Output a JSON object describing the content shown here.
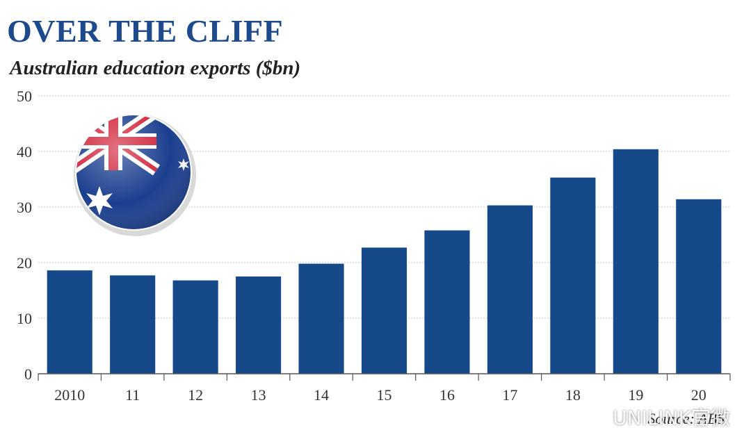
{
  "colors": {
    "bar": "#15498a",
    "grid": "#c9c9c9",
    "title": "#1d4a8c"
  },
  "icons": [
    "australian-flag-icon",
    "wechat-icon"
  ],
  "source": "Source: ABS",
  "watermark": "UNILINK官微",
  "chart_data": {
    "type": "bar",
    "title": "OVER THE CLIFF",
    "subtitle": "Australian education exports ($bn)",
    "xlabel": "",
    "ylabel": "",
    "categories": [
      "2010",
      "11",
      "12",
      "13",
      "14",
      "15",
      "16",
      "17",
      "18",
      "19",
      "20"
    ],
    "values": [
      18.6,
      17.7,
      16.8,
      17.5,
      19.8,
      22.7,
      25.8,
      30.3,
      35.3,
      40.4,
      31.4
    ],
    "ylim": [
      0,
      50
    ],
    "yticks": [
      0,
      10,
      20,
      30,
      40,
      50
    ],
    "grid": true,
    "legend": "none"
  }
}
